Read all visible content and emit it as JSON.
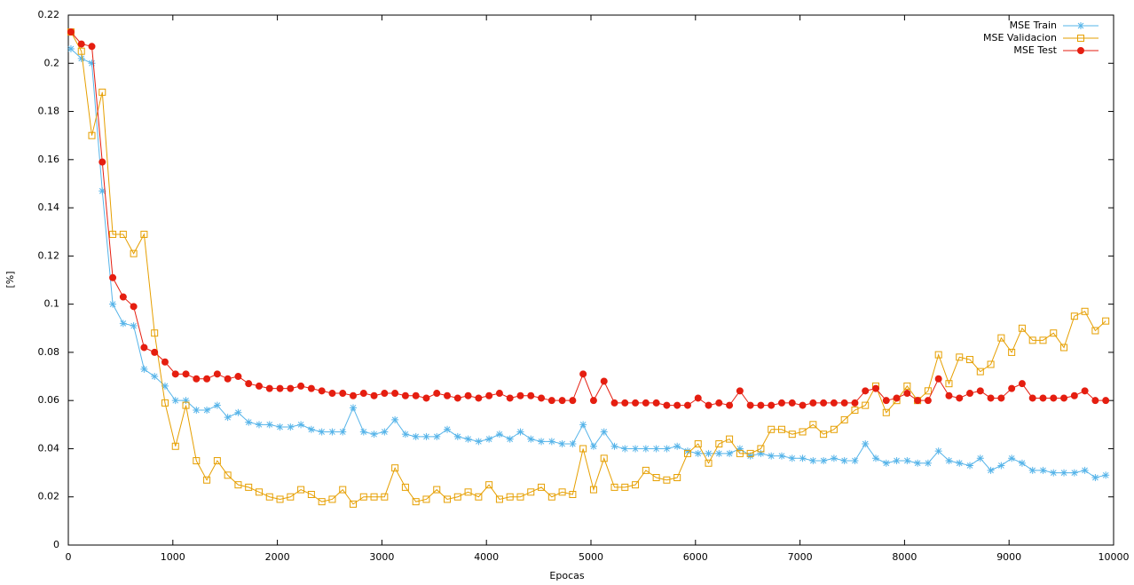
{
  "chart_data": {
    "type": "line",
    "xlabel": "Epocas",
    "ylabel": "[%]",
    "xlim": [
      0,
      10000
    ],
    "ylim": [
      0,
      0.22
    ],
    "xticks": [
      0,
      1000,
      2000,
      3000,
      4000,
      5000,
      6000,
      7000,
      8000,
      9000,
      10000
    ],
    "yticks": [
      0,
      0.02,
      0.04,
      0.06,
      0.08,
      0.1,
      0.12,
      0.14,
      0.16,
      0.18,
      0.2,
      0.22
    ],
    "legend": "top-right",
    "x": [
      25,
      125,
      225,
      325,
      425,
      525,
      625,
      725,
      825,
      925,
      1025,
      1125,
      1225,
      1325,
      1425,
      1525,
      1625,
      1725,
      1825,
      1925,
      2025,
      2125,
      2225,
      2325,
      2425,
      2525,
      2625,
      2725,
      2825,
      2925,
      3025,
      3125,
      3225,
      3325,
      3425,
      3525,
      3625,
      3725,
      3825,
      3925,
      4025,
      4125,
      4225,
      4325,
      4425,
      4525,
      4625,
      4725,
      4825,
      4925,
      5025,
      5125,
      5225,
      5325,
      5425,
      5525,
      5625,
      5725,
      5825,
      5925,
      6025,
      6125,
      6225,
      6325,
      6425,
      6525,
      6625,
      6725,
      6825,
      6925,
      7025,
      7125,
      7225,
      7325,
      7425,
      7525,
      7625,
      7725,
      7825,
      7925,
      8025,
      8125,
      8225,
      8325,
      8425,
      8525,
      8625,
      8725,
      8825,
      8925,
      9025,
      9125,
      9225,
      9325,
      9425,
      9525,
      9625,
      9725,
      9825,
      9925
    ],
    "series": [
      {
        "name": "MSE Train",
        "color": "#56b4e9",
        "marker": "star",
        "values": [
          0.206,
          0.202,
          0.2,
          0.147,
          0.1,
          0.092,
          0.091,
          0.073,
          0.07,
          0.066,
          0.06,
          0.06,
          0.056,
          0.056,
          0.058,
          0.053,
          0.055,
          0.051,
          0.05,
          0.05,
          0.049,
          0.049,
          0.05,
          0.048,
          0.047,
          0.047,
          0.047,
          0.057,
          0.047,
          0.046,
          0.047,
          0.052,
          0.046,
          0.045,
          0.045,
          0.045,
          0.048,
          0.045,
          0.044,
          0.043,
          0.044,
          0.046,
          0.044,
          0.047,
          0.044,
          0.043,
          0.043,
          0.042,
          0.042,
          0.05,
          0.041,
          0.047,
          0.041,
          0.04,
          0.04,
          0.04,
          0.04,
          0.04,
          0.041,
          0.039,
          0.038,
          0.038,
          0.038,
          0.038,
          0.04,
          0.037,
          0.038,
          0.037,
          0.037,
          0.036,
          0.036,
          0.035,
          0.035,
          0.036,
          0.035,
          0.035,
          0.042,
          0.036,
          0.034,
          0.035,
          0.035,
          0.034,
          0.034,
          0.039,
          0.035,
          0.034,
          0.033,
          0.036,
          0.031,
          0.033,
          0.036,
          0.034,
          0.031,
          0.031,
          0.03,
          0.03,
          0.03,
          0.031,
          0.028,
          0.029
        ]
      },
      {
        "name": "MSE Validacion",
        "color": "#e69f00",
        "marker": "square",
        "values": [
          0.213,
          0.205,
          0.17,
          0.188,
          0.129,
          0.129,
          0.121,
          0.129,
          0.088,
          0.059,
          0.041,
          0.058,
          0.035,
          0.027,
          0.035,
          0.029,
          0.025,
          0.024,
          0.022,
          0.02,
          0.019,
          0.02,
          0.023,
          0.021,
          0.018,
          0.019,
          0.023,
          0.017,
          0.02,
          0.02,
          0.02,
          0.032,
          0.024,
          0.018,
          0.019,
          0.023,
          0.019,
          0.02,
          0.022,
          0.02,
          0.025,
          0.019,
          0.02,
          0.02,
          0.022,
          0.024,
          0.02,
          0.022,
          0.021,
          0.04,
          0.023,
          0.036,
          0.024,
          0.024,
          0.025,
          0.031,
          0.028,
          0.027,
          0.028,
          0.038,
          0.042,
          0.034,
          0.042,
          0.044,
          0.038,
          0.038,
          0.04,
          0.048,
          0.048,
          0.046,
          0.047,
          0.05,
          0.046,
          0.048,
          0.052,
          0.056,
          0.058,
          0.066,
          0.055,
          0.06,
          0.066,
          0.06,
          0.064,
          0.079,
          0.067,
          0.078,
          0.077,
          0.072,
          0.075,
          0.086,
          0.08,
          0.09,
          0.085,
          0.085,
          0.088,
          0.082,
          0.095,
          0.097,
          0.089,
          0.093
        ]
      },
      {
        "name": "MSE Test",
        "color": "#e51e10",
        "marker": "circle",
        "values": [
          0.213,
          0.208,
          0.207,
          0.159,
          0.111,
          0.103,
          0.099,
          0.082,
          0.08,
          0.076,
          0.071,
          0.071,
          0.069,
          0.069,
          0.071,
          0.069,
          0.07,
          0.067,
          0.066,
          0.065,
          0.065,
          0.065,
          0.066,
          0.065,
          0.064,
          0.063,
          0.063,
          0.062,
          0.063,
          0.062,
          0.063,
          0.063,
          0.062,
          0.062,
          0.061,
          0.063,
          0.062,
          0.061,
          0.062,
          0.061,
          0.062,
          0.063,
          0.061,
          0.062,
          0.062,
          0.061,
          0.06,
          0.06,
          0.06,
          0.071,
          0.06,
          0.068,
          0.059,
          0.059,
          0.059,
          0.059,
          0.059,
          0.058,
          0.058,
          0.058,
          0.061,
          0.058,
          0.059,
          0.058,
          0.064,
          0.058,
          0.058,
          0.058,
          0.059,
          0.059,
          0.058,
          0.059,
          0.059,
          0.059,
          0.059,
          0.059,
          0.064,
          0.065,
          0.06,
          0.061,
          0.063,
          0.06,
          0.06,
          0.069,
          0.062,
          0.061,
          0.063,
          0.064,
          0.061,
          0.061,
          0.065,
          0.067,
          0.061,
          0.061,
          0.061,
          0.061,
          0.062,
          0.064,
          0.06,
          0.06
        ]
      }
    ]
  }
}
